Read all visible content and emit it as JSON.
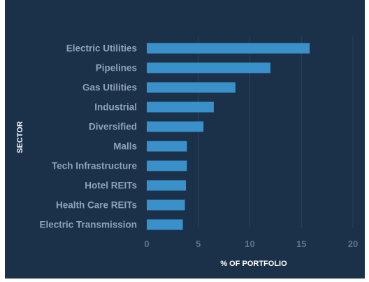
{
  "chart_data": {
    "type": "bar",
    "orientation": "horizontal",
    "categories": [
      "Electric Utilities",
      "Pipelines",
      "Gas Utilities",
      "Industrial",
      "Diversified",
      "Malls",
      "Tech Infrastructure",
      "Hotel REITs",
      "Health Care REITs",
      "Electric Transmission"
    ],
    "values": [
      15.8,
      12.0,
      8.6,
      6.5,
      5.5,
      3.9,
      3.9,
      3.8,
      3.7,
      3.5
    ],
    "xlabel": "% OF PORTFOLIO",
    "ylabel": "SECTOR",
    "xlim": [
      0,
      20
    ],
    "xticks": [
      0,
      5,
      10,
      15,
      20
    ],
    "grid": true,
    "colors": {
      "bar": "#3a91c9",
      "background": "#1b3049",
      "grid": "#2a425d",
      "category_text": "#8fa4b9",
      "tick_text": "#5d7590",
      "axis_title": "#ffffff"
    }
  }
}
